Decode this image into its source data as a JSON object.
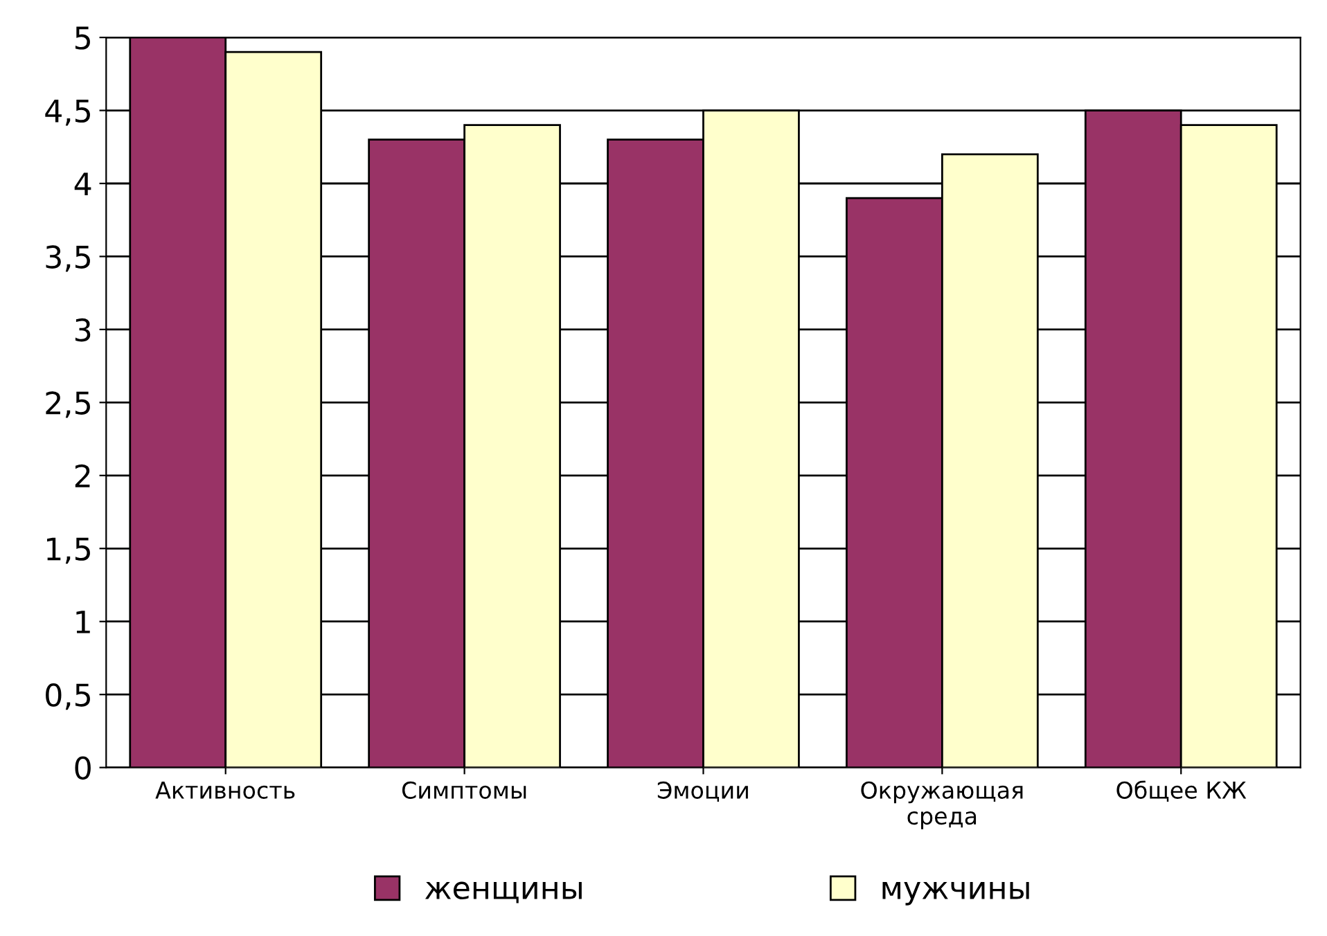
{
  "chart_data": {
    "type": "bar",
    "categories": [
      "Активность",
      "Симптомы",
      "Эмоции",
      "Окружающая\nсреда",
      "Общее КЖ"
    ],
    "series": [
      {
        "name": "женщины",
        "color": "#993366",
        "values": [
          5.0,
          4.3,
          4.3,
          3.9,
          4.5
        ]
      },
      {
        "name": "мужчины",
        "color": "#ffffcc",
        "values": [
          4.9,
          4.4,
          4.5,
          4.2,
          4.4
        ]
      }
    ],
    "ylim": [
      0,
      5
    ],
    "yticks": [
      0,
      {
        "value": 0.5,
        "label": "0,5"
      },
      1,
      {
        "value": 1.5,
        "label": "1,5"
      },
      2,
      {
        "value": 2.5,
        "label": "2,5"
      },
      3,
      {
        "value": 3.5,
        "label": "3,5"
      },
      4,
      {
        "value": 4.5,
        "label": "4,5"
      },
      5
    ],
    "grid": "y",
    "legend": "bottom"
  }
}
